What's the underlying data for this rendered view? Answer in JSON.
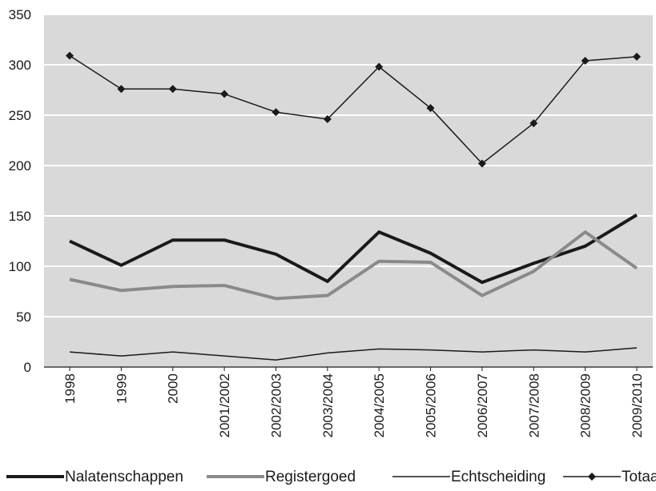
{
  "chart_data": {
    "type": "line",
    "categories": [
      "1998",
      "1999",
      "2000",
      "2001/2002",
      "2002/2003",
      "2003/2004",
      "2004/2005",
      "2005/2006",
      "2006/2007",
      "2007/2008",
      "2008/2009",
      "2009/2010"
    ],
    "ylim": [
      0,
      350
    ],
    "yticks": [
      0,
      50,
      100,
      150,
      200,
      250,
      300,
      350
    ],
    "grid": true,
    "legend_position": "bottom",
    "plot_background": "#d9d9d9",
    "series": [
      {
        "name": "Nalatenschappen",
        "color": "#1a1a1a",
        "style": "thick",
        "values": [
          125,
          101,
          126,
          126,
          112,
          85,
          134,
          113,
          84,
          103,
          120,
          151
        ]
      },
      {
        "name": "Registergoed",
        "color": "#8a8a8a",
        "style": "thick",
        "values": [
          87,
          76,
          80,
          81,
          68,
          71,
          105,
          104,
          71,
          95,
          134,
          98
        ]
      },
      {
        "name": "Echtscheiding",
        "color": "#1a1a1a",
        "style": "thin",
        "values": [
          15,
          11,
          15,
          11,
          7,
          14,
          18,
          17,
          15,
          17,
          15,
          19
        ]
      },
      {
        "name": "Totaal",
        "color": "#1a1a1a",
        "style": "thin-marker",
        "values": [
          309,
          276,
          276,
          271,
          253,
          246,
          298,
          257,
          202,
          242,
          304,
          308
        ]
      }
    ]
  }
}
